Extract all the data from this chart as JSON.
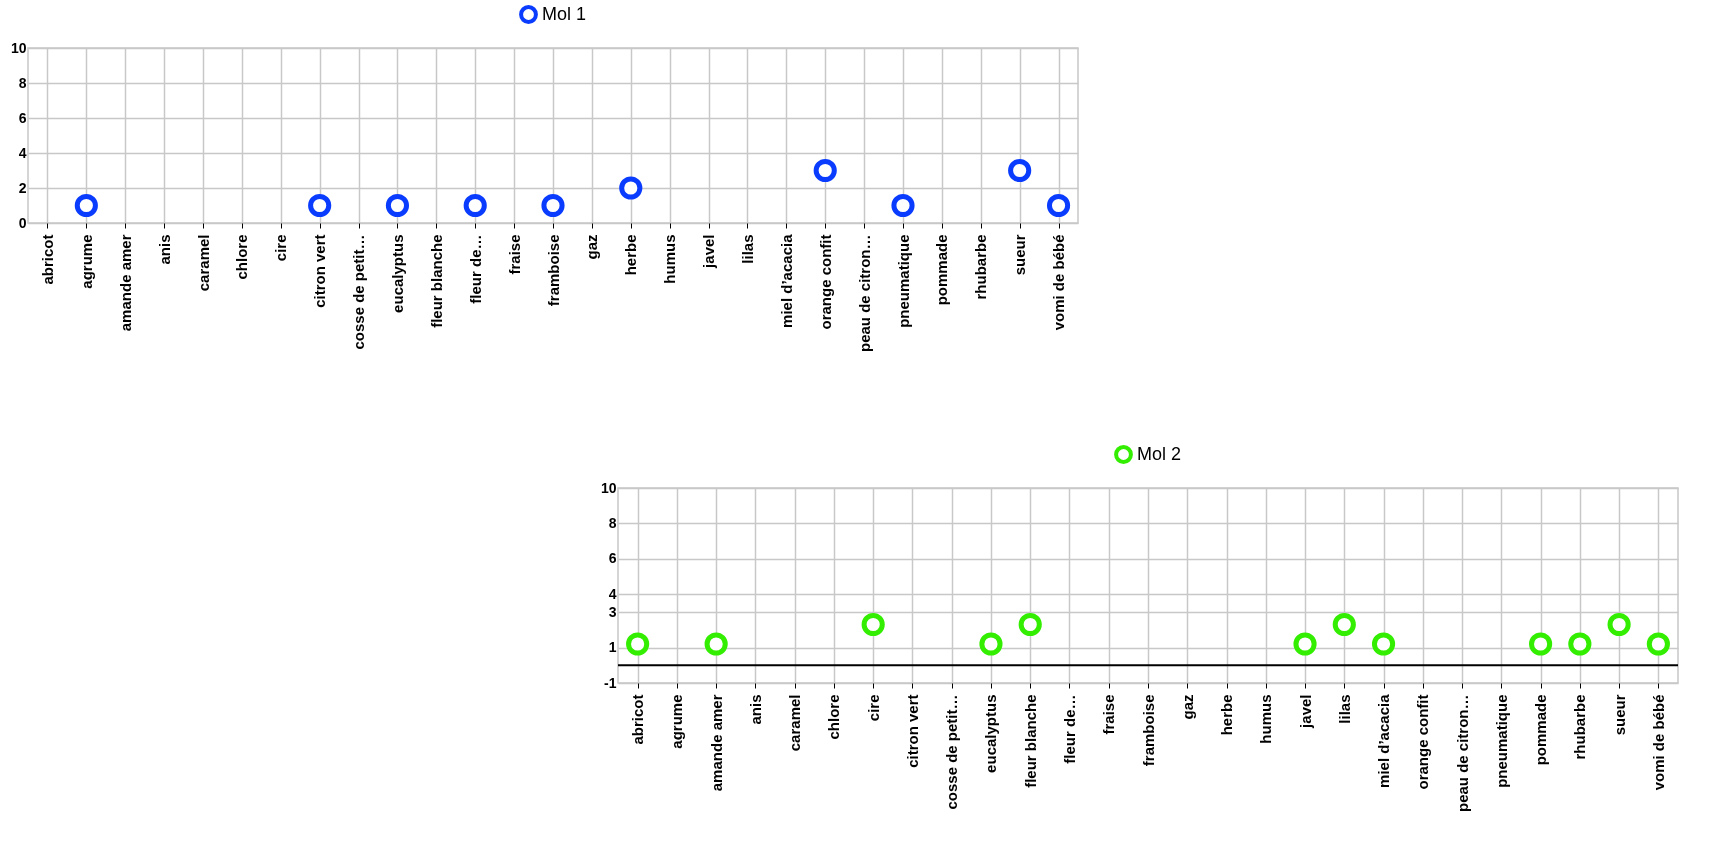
{
  "chart_data": [
    {
      "type": "scatter",
      "categories": [
        "abricot",
        "agrume",
        "amande amer",
        "anis",
        "caramel",
        "chlore",
        "cire",
        "citron vert",
        "cosse de petit…",
        "eucalyptus",
        "fleur blanche",
        "fleur de…",
        "fraise",
        "framboise",
        "gaz",
        "herbe",
        "humus",
        "javel",
        "lilas",
        "miel d’acacia",
        "orange confit",
        "peau de citron…",
        "pneumatique",
        "pommade",
        "rhubarbe",
        "sueur",
        "vomi de bébé"
      ],
      "ylim": [
        0,
        10
      ],
      "yticks": [
        0,
        2,
        4,
        6,
        8,
        10
      ],
      "grid": true,
      "legend": "top",
      "marker": "circle",
      "series": [
        {
          "name": "Mol 1",
          "color": "#0a3cff",
          "values": [
            null,
            1,
            null,
            null,
            null,
            null,
            null,
            1,
            null,
            1,
            null,
            1,
            null,
            1,
            null,
            2,
            null,
            null,
            null,
            null,
            3,
            null,
            1,
            null,
            null,
            3,
            1
          ]
        }
      ]
    },
    {
      "type": "scatter",
      "categories": [
        "abricot",
        "agrume",
        "amande amer",
        "anis",
        "caramel",
        "chlore",
        "cire",
        "citron vert",
        "cosse de petit…",
        "eucalyptus",
        "fleur blanche",
        "fleur de…",
        "fraise",
        "framboise",
        "gaz",
        "herbe",
        "humus",
        "javel",
        "lilas",
        "miel d’acacia",
        "orange confit",
        "peau de citron…",
        "pneumatique",
        "pommade",
        "rhubarbe",
        "sueur",
        "vomi de bébé"
      ],
      "ylim": [
        -1,
        10
      ],
      "yticks": [
        -1,
        1,
        3,
        4,
        6,
        8,
        10
      ],
      "grid": true,
      "legend": "top",
      "marker": "circle",
      "ref_lines": [
        {
          "axis": "y",
          "value": 0,
          "color": "#000000"
        }
      ],
      "series": [
        {
          "name": "Mol 2",
          "color": "#33ee00",
          "values": [
            1.2,
            null,
            1.2,
            null,
            null,
            null,
            2.3,
            null,
            null,
            1.2,
            2.3,
            null,
            null,
            null,
            null,
            null,
            null,
            1.2,
            2.3,
            1.2,
            null,
            null,
            null,
            1.2,
            1.2,
            2.3,
            1.2
          ]
        }
      ]
    }
  ]
}
